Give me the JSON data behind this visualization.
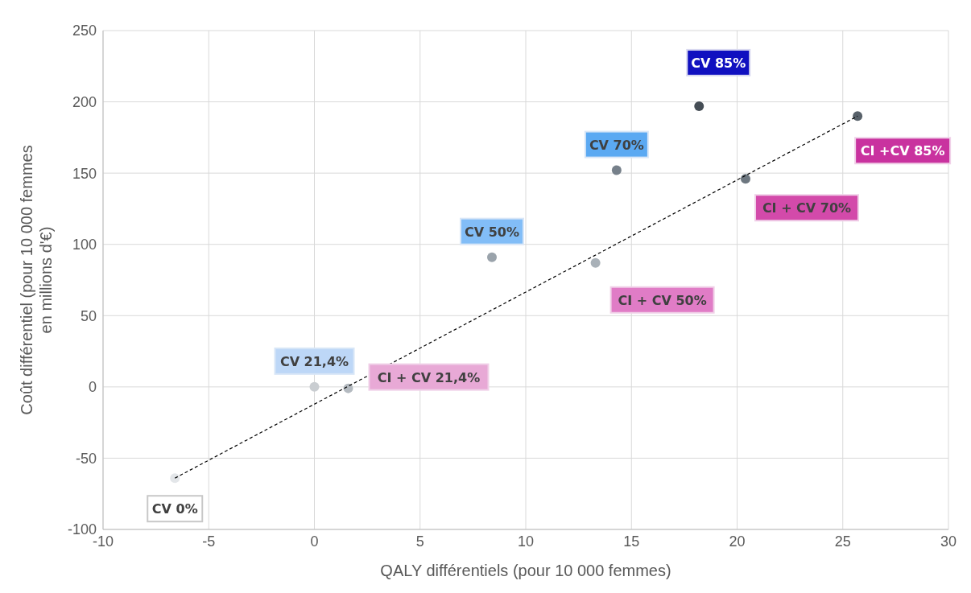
{
  "chart_data": {
    "type": "scatter",
    "xlabel": "QALY différentiels (pour 10 000 femmes)",
    "ylabel": "Coût différentiel (pour 10 000 femmes en millions d'€)",
    "xlim": [
      -10,
      30
    ],
    "xticks": [
      -10,
      -5,
      0,
      5,
      10,
      15,
      20,
      25,
      30
    ],
    "ylim": [
      -100,
      250
    ],
    "yticks": [
      -100,
      -50,
      0,
      50,
      100,
      150,
      200,
      250
    ],
    "grid": true,
    "legend": false,
    "marker": "circle",
    "series": [
      {
        "x": [
          -6.6,
          0,
          1.6,
          8.4,
          13.3,
          14.3,
          18.2,
          20.4,
          25.7
        ],
        "values": [
          -64,
          0,
          -1,
          91,
          87,
          152,
          197,
          146,
          190
        ],
        "colors": [
          "#e3e6e9",
          "#c9cdd1",
          "#b4bac0",
          "#9aa3ab",
          "#a9b1b8",
          "#76808a",
          "#454d55",
          "#6d7780",
          "#58616a"
        ],
        "value_labels": [
          "CV 0%",
          "CV 21,4%",
          "CI + CV 21,4%",
          "CV 50%",
          "CI + CV 50%",
          "CV 70%",
          "CV 85%",
          "CI + CV 70%",
          "CI +CV 85%"
        ]
      },
      {
        "type": "line",
        "x": [
          -6.6,
          25.7
        ],
        "values": [
          -64,
          190
        ],
        "color": "#000000",
        "line_style": "dashed",
        "marker": "none"
      }
    ]
  }
}
